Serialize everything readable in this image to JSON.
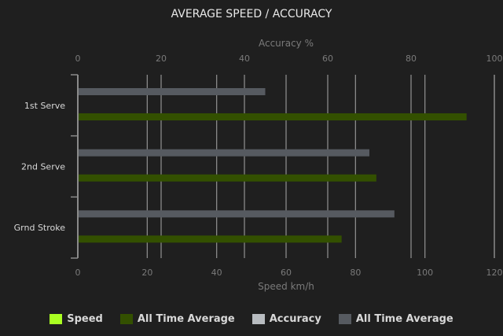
{
  "chart_data": {
    "type": "bar",
    "orientation": "horizontal",
    "title": "AVERAGE SPEED / ACCURACY",
    "categories": [
      "1st Serve",
      "2nd Serve",
      "Grnd Stroke"
    ],
    "top_axis": {
      "label": "Accuracy %",
      "range": [
        0,
        100
      ],
      "ticks": [
        0,
        20,
        40,
        60,
        80,
        100
      ]
    },
    "bottom_axis": {
      "label": "Speed km/h",
      "range": [
        0,
        120
      ],
      "ticks": [
        0,
        20,
        40,
        60,
        80,
        100,
        120
      ]
    },
    "grid": true,
    "legend_position": "bottom",
    "series": [
      {
        "name": "Speed",
        "axis": "speed",
        "color": "#aaff22",
        "values": [
          0,
          0,
          0
        ]
      },
      {
        "name": "All Time Average",
        "axis": "speed",
        "color": "#335000",
        "values": [
          112,
          86,
          76
        ]
      },
      {
        "name": "Accuracy",
        "axis": "accuracy",
        "color": "#b8bcc0",
        "values": [
          0,
          0,
          0
        ]
      },
      {
        "name": "All Time Average",
        "axis": "accuracy",
        "color": "#565a60",
        "values": [
          45,
          70,
          76
        ]
      }
    ]
  }
}
